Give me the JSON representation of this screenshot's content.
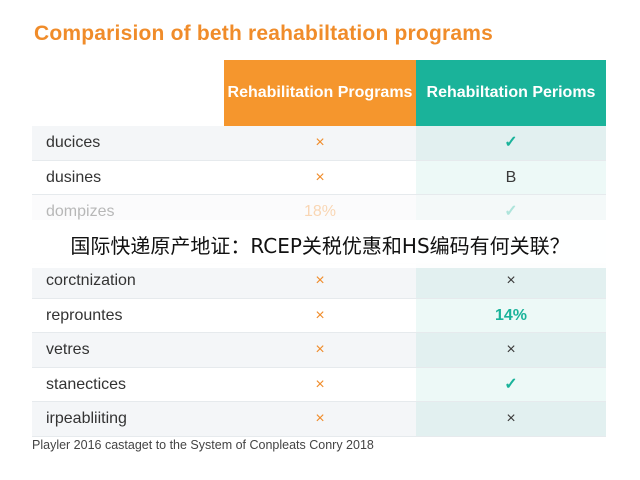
{
  "title": "Comparision of beth reahabiltation programs",
  "columns": [
    "Rehabilitation Programs",
    "Rehabiltation Perioms"
  ],
  "rows": [
    {
      "label": "ducices",
      "a": "×",
      "b": "✓"
    },
    {
      "label": "dusines",
      "a": "×",
      "b": "B"
    },
    {
      "label": "dompizes",
      "a": "18%",
      "b": "✓"
    },
    {
      "label": "",
      "a": "",
      "b": ""
    },
    {
      "label": "corctnization",
      "a": "×",
      "b": "×"
    },
    {
      "label": "reprountes",
      "a": "×",
      "b": "14%"
    },
    {
      "label": "vetres",
      "a": "×",
      "b": "×"
    },
    {
      "label": "stanectices",
      "a": "×",
      "b": "✓"
    },
    {
      "label": "irpeabliiting",
      "a": "×",
      "b": "×"
    }
  ],
  "footer": "Playler 2016 castaget to the System of Conpleats Conry 2018",
  "banner": "国际快递原产地证：RCEP关税优惠和HS编码有何关联？",
  "colors": {
    "orange": "#f5962d",
    "teal": "#1ab39a"
  }
}
